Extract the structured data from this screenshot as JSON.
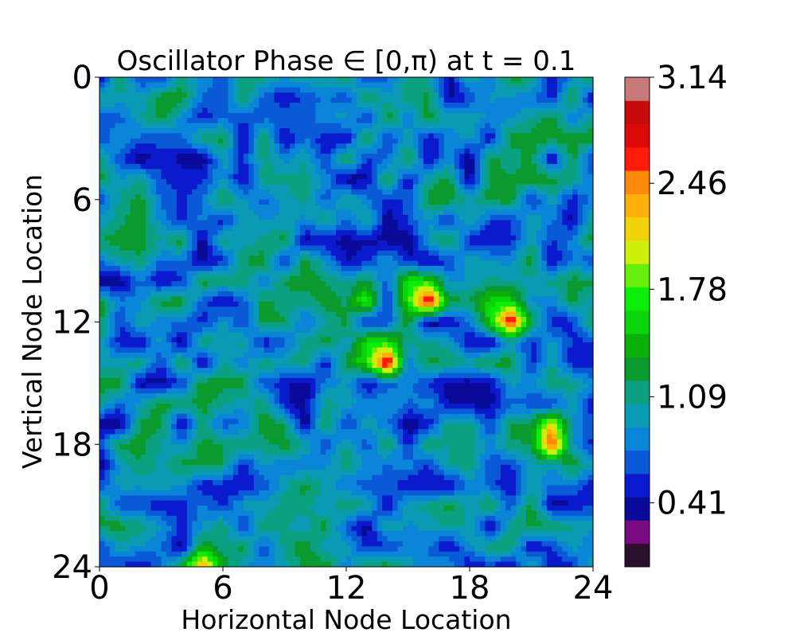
{
  "chart_data": [
    {
      "type": "heatmap",
      "subtype": "filled-contour",
      "title": "Oscillator Phase ∈ [0,π) at t = 0.1",
      "xlabel": "Horizontal Node Location",
      "ylabel": "Vertical Node Location",
      "xlim": [
        0,
        24
      ],
      "ylim": [
        24,
        0
      ],
      "y_axis_inverted": true,
      "xticks": [
        0,
        6,
        12,
        18,
        24
      ],
      "yticks": [
        0,
        6,
        12,
        18,
        24
      ],
      "grid_size": [
        25,
        25
      ],
      "value_range": [
        0,
        3.14
      ],
      "background_level_approx": 0.85,
      "peaks": [
        {
          "x": 15.5,
          "y": 10.5,
          "value": 3.0
        },
        {
          "x": 13.5,
          "y": 13.5,
          "value": 3.0
        },
        {
          "x": 19.5,
          "y": 11.5,
          "value": 2.9
        },
        {
          "x": 22.0,
          "y": 17.5,
          "value": 2.8
        },
        {
          "x": 5.0,
          "y": 24.0,
          "value": 2.5
        },
        {
          "x": 12.8,
          "y": 10.5,
          "value": 1.8
        }
      ],
      "colormap": "nipy_spectral"
    },
    {
      "type": "colorbar",
      "ticks": [
        "3.14",
        "2.46",
        "1.78",
        "1.09",
        "0.41"
      ],
      "tick_values": [
        3.14,
        2.46,
        1.78,
        1.09,
        0.41
      ],
      "range": [
        0,
        3.14
      ],
      "levels": 20,
      "colors": [
        "#2b0f2d",
        "#7a0a82",
        "#0a0a99",
        "#0a1acc",
        "#0a5ad8",
        "#0a85d8",
        "#0a9ab3",
        "#0aa080",
        "#0a9a2e",
        "#0ab00a",
        "#0ad40a",
        "#0aee0a",
        "#66ee0a",
        "#ccf00a",
        "#f2d20a",
        "#ffb00a",
        "#ff8a0a",
        "#ff1a0a",
        "#dd0a0a",
        "#c80a0a",
        "#c87a7a"
      ]
    }
  ]
}
